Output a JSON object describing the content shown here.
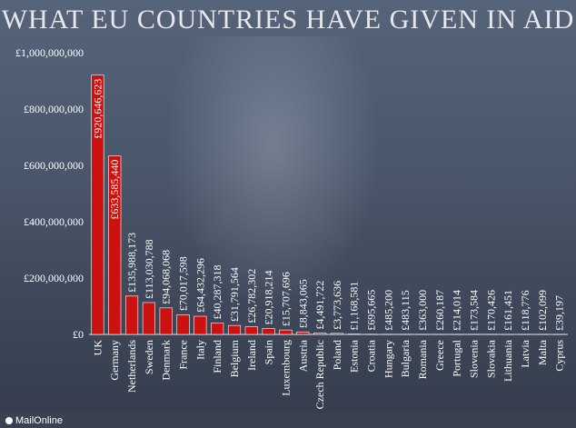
{
  "title": "WHAT EU COUNTRIES HAVE GIVEN IN AID",
  "brand": "MailOnline",
  "colors": {
    "bar": "#cc1111",
    "text": "#ffffff"
  },
  "chart_data": {
    "type": "bar",
    "title": "WHAT EU COUNTRIES HAVE GIVEN IN AID",
    "xlabel": "",
    "ylabel": "",
    "ylim": [
      0,
      1000000000
    ],
    "yticks": [
      0,
      200000000,
      400000000,
      600000000,
      800000000,
      1000000000
    ],
    "ytick_labels": [
      "£0",
      "£200,000,000",
      "£400,000,000",
      "£600,000,000",
      "£800,000,000",
      "£1,000,000,000"
    ],
    "categories": [
      "UK",
      "Germany",
      "Netherlands",
      "Sweden",
      "Denmark",
      "France",
      "Italy",
      "Finland",
      "Belgium",
      "Ireland",
      "Spain",
      "Luxembourg",
      "Austria",
      "Czech Republic",
      "Poland",
      "Estonia",
      "Croatia",
      "Hungary",
      "Bulgaria",
      "Romania",
      "Greece",
      "Portugal",
      "Slovenia",
      "Slovakia",
      "Lithuania",
      "Latvia",
      "Malta",
      "Cyprus"
    ],
    "values": [
      920646623,
      633585440,
      135988173,
      113030788,
      94068068,
      70017598,
      64432296,
      40287318,
      31791564,
      26782302,
      20918214,
      15707696,
      8843065,
      4491722,
      3773636,
      1168581,
      695665,
      485200,
      483115,
      363000,
      260187,
      214014,
      173584,
      170426,
      161451,
      118776,
      102099,
      39197
    ],
    "value_labels": [
      "£920,646,623",
      "£633,585,440",
      "£135,988,173",
      "£113,030,788",
      "£94,068,068",
      "£70,017,598",
      "£64,432,296",
      "£40,287,318",
      "£31,791,564",
      "£26,782,302",
      "£20,918,214",
      "£15,707,696",
      "£8,843,065",
      "£4,491,722",
      "£3,773,636",
      "£1,168,581",
      "£695,665",
      "£485,200",
      "£483,115",
      "£363,000",
      "£260,187",
      "£214,014",
      "£173,584",
      "£170,426",
      "£161,451",
      "£118,776",
      "£102,099",
      "£39,197"
    ]
  }
}
